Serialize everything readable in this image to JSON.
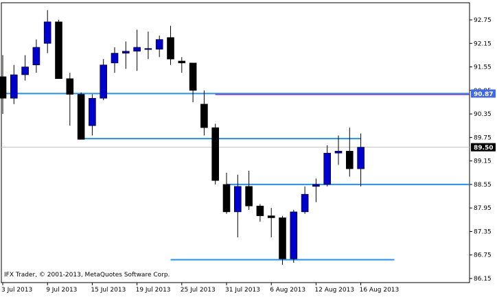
{
  "copyright": "IFX Trader, © 2001-2013, MetaQuotes Software Corp.",
  "colors": {
    "bull": "#0000cd",
    "bear": "#000000",
    "wick": "#000000",
    "support_line": "#1e90ff",
    "resistance_line": "#c000c0",
    "bid_line": "#c0c0c0",
    "highlight_label": "#4169e1",
    "current_label": "#000000"
  },
  "chart_data": {
    "type": "candlestick",
    "title": "",
    "ylim": [
      86.0,
      93.0
    ],
    "y_ticks": [
      "92.75",
      "92.15",
      "91.55",
      "90.95",
      "90.35",
      "89.75",
      "89.15",
      "88.55",
      "87.95",
      "87.35",
      "86.75",
      "86.15"
    ],
    "x_ticks": [
      {
        "label": "3 Jul 2013",
        "index": 0
      },
      {
        "label": "9 Jul 2013",
        "index": 4
      },
      {
        "label": "15 Jul 2013",
        "index": 8
      },
      {
        "label": "19 Jul 2013",
        "index": 12
      },
      {
        "label": "25 Jul 2013",
        "index": 16
      },
      {
        "label": "31 Jul 2013",
        "index": 20
      },
      {
        "label": "6 Aug 2013",
        "index": 24
      },
      {
        "label": "12 Aug 2013",
        "index": 28
      },
      {
        "label": "16 Aug 2013",
        "index": 32
      }
    ],
    "price_labels": [
      {
        "text": "90.87",
        "value": 90.87,
        "style": "highlight"
      },
      {
        "text": "89.50",
        "value": 89.5,
        "style": "current"
      }
    ],
    "candles": [
      {
        "o": 91.3,
        "h": 91.85,
        "l": 90.35,
        "c": 90.75
      },
      {
        "o": 90.75,
        "h": 91.6,
        "l": 90.6,
        "c": 91.35
      },
      {
        "o": 91.35,
        "h": 91.85,
        "l": 91.2,
        "c": 91.55
      },
      {
        "o": 91.6,
        "h": 92.25,
        "l": 91.4,
        "c": 92.05
      },
      {
        "o": 92.15,
        "h": 93.0,
        "l": 91.9,
        "c": 92.7
      },
      {
        "o": 92.7,
        "h": 92.75,
        "l": 91.25,
        "c": 91.25
      },
      {
        "o": 91.25,
        "h": 91.4,
        "l": 90.05,
        "c": 90.85
      },
      {
        "o": 90.85,
        "h": 90.9,
        "l": 89.7,
        "c": 89.7
      },
      {
        "o": 90.05,
        "h": 90.85,
        "l": 89.8,
        "c": 90.75
      },
      {
        "o": 90.75,
        "h": 91.75,
        "l": 90.7,
        "c": 91.6
      },
      {
        "o": 91.65,
        "h": 92.05,
        "l": 91.4,
        "c": 91.9
      },
      {
        "o": 91.9,
        "h": 92.2,
        "l": 91.5,
        "c": 91.95
      },
      {
        "o": 91.95,
        "h": 92.5,
        "l": 91.45,
        "c": 92.05
      },
      {
        "o": 92.0,
        "h": 92.45,
        "l": 91.75,
        "c": 92.02
      },
      {
        "o": 92.0,
        "h": 92.35,
        "l": 91.8,
        "c": 92.25
      },
      {
        "o": 92.3,
        "h": 92.6,
        "l": 91.6,
        "c": 91.75
      },
      {
        "o": 91.7,
        "h": 91.8,
        "l": 91.4,
        "c": 91.65
      },
      {
        "o": 91.65,
        "h": 91.65,
        "l": 90.65,
        "c": 90.95
      },
      {
        "o": 90.6,
        "h": 90.95,
        "l": 89.8,
        "c": 90.0
      },
      {
        "o": 90.0,
        "h": 90.1,
        "l": 88.55,
        "c": 88.65
      },
      {
        "o": 88.55,
        "h": 88.85,
        "l": 87.8,
        "c": 87.85
      },
      {
        "o": 87.85,
        "h": 88.8,
        "l": 87.2,
        "c": 88.5
      },
      {
        "o": 88.5,
        "h": 88.9,
        "l": 87.9,
        "c": 88.0
      },
      {
        "o": 88.0,
        "h": 88.05,
        "l": 87.6,
        "c": 87.75
      },
      {
        "o": 87.75,
        "h": 87.95,
        "l": 87.2,
        "c": 87.7
      },
      {
        "o": 87.7,
        "h": 87.75,
        "l": 86.5,
        "c": 86.65
      },
      {
        "o": 86.65,
        "h": 87.9,
        "l": 86.55,
        "c": 87.85
      },
      {
        "o": 87.85,
        "h": 88.5,
        "l": 87.8,
        "c": 88.3
      },
      {
        "o": 88.5,
        "h": 88.7,
        "l": 88.1,
        "c": 88.55
      },
      {
        "o": 88.55,
        "h": 89.55,
        "l": 88.5,
        "c": 89.35
      },
      {
        "o": 89.35,
        "h": 89.8,
        "l": 89.05,
        "c": 89.4
      },
      {
        "o": 89.4,
        "h": 90.0,
        "l": 88.75,
        "c": 88.95
      },
      {
        "o": 88.95,
        "h": 89.85,
        "l": 88.5,
        "c": 89.5
      }
    ],
    "horizontal_lines": [
      {
        "name": "resistance-90.87",
        "value": 90.86,
        "from_index": 19,
        "color": "resistance"
      },
      {
        "name": "line-90.87-full",
        "value": 90.87,
        "from_index": 0,
        "color": "support",
        "full": true
      },
      {
        "name": "line-89.72",
        "value": 89.72,
        "from_index": 7,
        "to_index": 32,
        "color": "support"
      },
      {
        "name": "line-88.55",
        "value": 88.55,
        "from_index": 20,
        "color": "support"
      },
      {
        "name": "line-86.63",
        "value": 86.63,
        "from_index": 15,
        "to_index": 35,
        "color": "support"
      }
    ],
    "grid": false
  }
}
